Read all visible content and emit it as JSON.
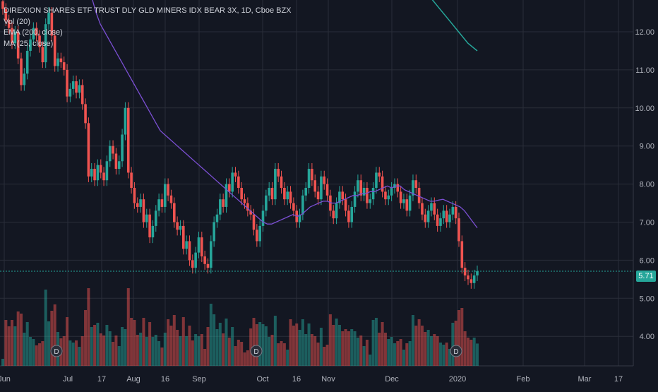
{
  "legend": {
    "title": "DIREXION SHARES ETF TRUST DLY GLD MINERS IDX BEAR 3X, 1D, Cboe BZX",
    "vol": "Vol (20)",
    "ema": "EMA (200, close)",
    "ma": "MA (25, close)"
  },
  "last_price_label": "5.71",
  "colors": {
    "background": "#131722",
    "up": "#26a69a",
    "down": "#ef5350",
    "ma_line": "#7b4fd3",
    "ema_line": "#26a69a",
    "grid": "#2a2e39",
    "text": "#b2b5be"
  },
  "chart_data": {
    "type": "candlestick",
    "title": "DIREXION SHARES ETF TRUST DLY GLD MINERS IDX BEAR 3X, 1D, Cboe BZX",
    "y_ticks": [
      "12.00",
      "11.00",
      "10.00",
      "9.00",
      "8.00",
      "7.00",
      "6.00",
      "5.00",
      "4.00"
    ],
    "y_values": [
      12,
      11,
      10,
      9,
      8,
      7,
      6,
      5,
      4
    ],
    "ylim": [
      3.5,
      12.9
    ],
    "x_ticks": [
      "Jun",
      "Jul",
      "17",
      "Aug",
      "16",
      "Sep",
      "Oct",
      "16",
      "Nov",
      "Dec",
      "2020",
      "Feb",
      "Mar",
      "17"
    ],
    "x_tick_days": [
      0,
      30,
      46,
      61,
      76,
      92,
      122,
      138,
      153,
      183,
      214,
      245,
      274,
      290
    ],
    "xlim_days": [
      -2,
      297
    ],
    "last_price": 5.71,
    "grid": true,
    "volume_scale_top": 5.7,
    "closes": [
      12.6,
      12.3,
      12.1,
      11.7,
      12.0,
      11.3,
      10.6,
      10.9,
      11.5,
      11.8,
      12.1,
      11.9,
      11.6,
      11.2,
      12.2,
      12.5,
      11.9,
      11.1,
      11.3,
      11.2,
      11.0,
      10.3,
      10.5,
      10.7,
      10.4,
      10.6,
      10.1,
      9.6,
      8.2,
      8.4,
      8.1,
      8.5,
      8.3,
      8.1,
      8.6,
      9.0,
      8.8,
      8.4,
      8.6,
      9.3,
      10.0,
      8.3,
      7.9,
      7.5,
      7.4,
      7.6,
      7.0,
      7.2,
      6.6,
      6.9,
      7.3,
      7.6,
      7.4,
      8.0,
      7.7,
      7.5,
      7.0,
      6.8,
      6.9,
      6.3,
      6.5,
      6.0,
      5.8,
      6.2,
      6.6,
      6.1,
      5.9,
      5.8,
      6.5,
      7.0,
      7.2,
      7.6,
      7.4,
      8.0,
      7.8,
      8.3,
      8.2,
      7.9,
      7.6,
      7.5,
      7.3,
      7.2,
      6.8,
      6.5,
      6.9,
      7.3,
      7.7,
      7.9,
      7.6,
      8.4,
      8.2,
      7.9,
      7.6,
      7.8,
      7.5,
      7.3,
      7.0,
      7.2,
      7.7,
      7.9,
      8.4,
      8.1,
      7.8,
      7.6,
      8.2,
      8.0,
      7.7,
      7.3,
      7.1,
      7.5,
      7.8,
      7.6,
      7.3,
      7.0,
      7.4,
      7.8,
      8.1,
      7.7,
      7.9,
      7.5,
      7.6,
      7.9,
      8.3,
      8.2,
      7.8,
      7.6,
      7.7,
      7.9,
      8.0,
      7.8,
      7.5,
      7.6,
      7.3,
      7.7,
      8.1,
      7.9,
      7.5,
      7.2,
      7.0,
      7.3,
      7.5,
      7.2,
      6.9,
      7.1,
      7.3,
      7.0,
      7.2,
      7.4,
      7.1,
      6.5,
      5.8,
      5.6,
      5.5,
      5.4,
      5.6,
      5.71
    ],
    "ma25": [
      12.9,
      12.5,
      12.2,
      12.0,
      11.8,
      11.6,
      11.4,
      11.2,
      11.0,
      10.8,
      10.6,
      10.4,
      10.2,
      10.0,
      9.8,
      9.6,
      9.4,
      9.3,
      9.2,
      9.1,
      9.0,
      8.9,
      8.8,
      8.7,
      8.6,
      8.5,
      8.4,
      8.3,
      8.2,
      8.1,
      8.0,
      7.9,
      7.8,
      7.7,
      7.6,
      7.5,
      7.4,
      7.3,
      7.2,
      7.1,
      7.0,
      6.95,
      6.95,
      7.0,
      7.05,
      7.1,
      7.15,
      7.2,
      7.15,
      7.2,
      7.3,
      7.4,
      7.45,
      7.5,
      7.55,
      7.55,
      7.5,
      7.5,
      7.55,
      7.6,
      7.65,
      7.7,
      7.7,
      7.75,
      7.75,
      7.8,
      7.8,
      7.85,
      7.9,
      7.95,
      7.9,
      7.95,
      7.95,
      7.85,
      7.8,
      7.75,
      7.7,
      7.65,
      7.6,
      7.55,
      7.55,
      7.58,
      7.6,
      7.55,
      7.5,
      7.45,
      7.4,
      7.3,
      7.15,
      7.0,
      6.85
    ],
    "ema200": [
      13.8,
      13.5,
      13.2,
      12.9,
      12.6,
      12.3,
      12.0,
      11.7,
      11.5
    ]
  }
}
